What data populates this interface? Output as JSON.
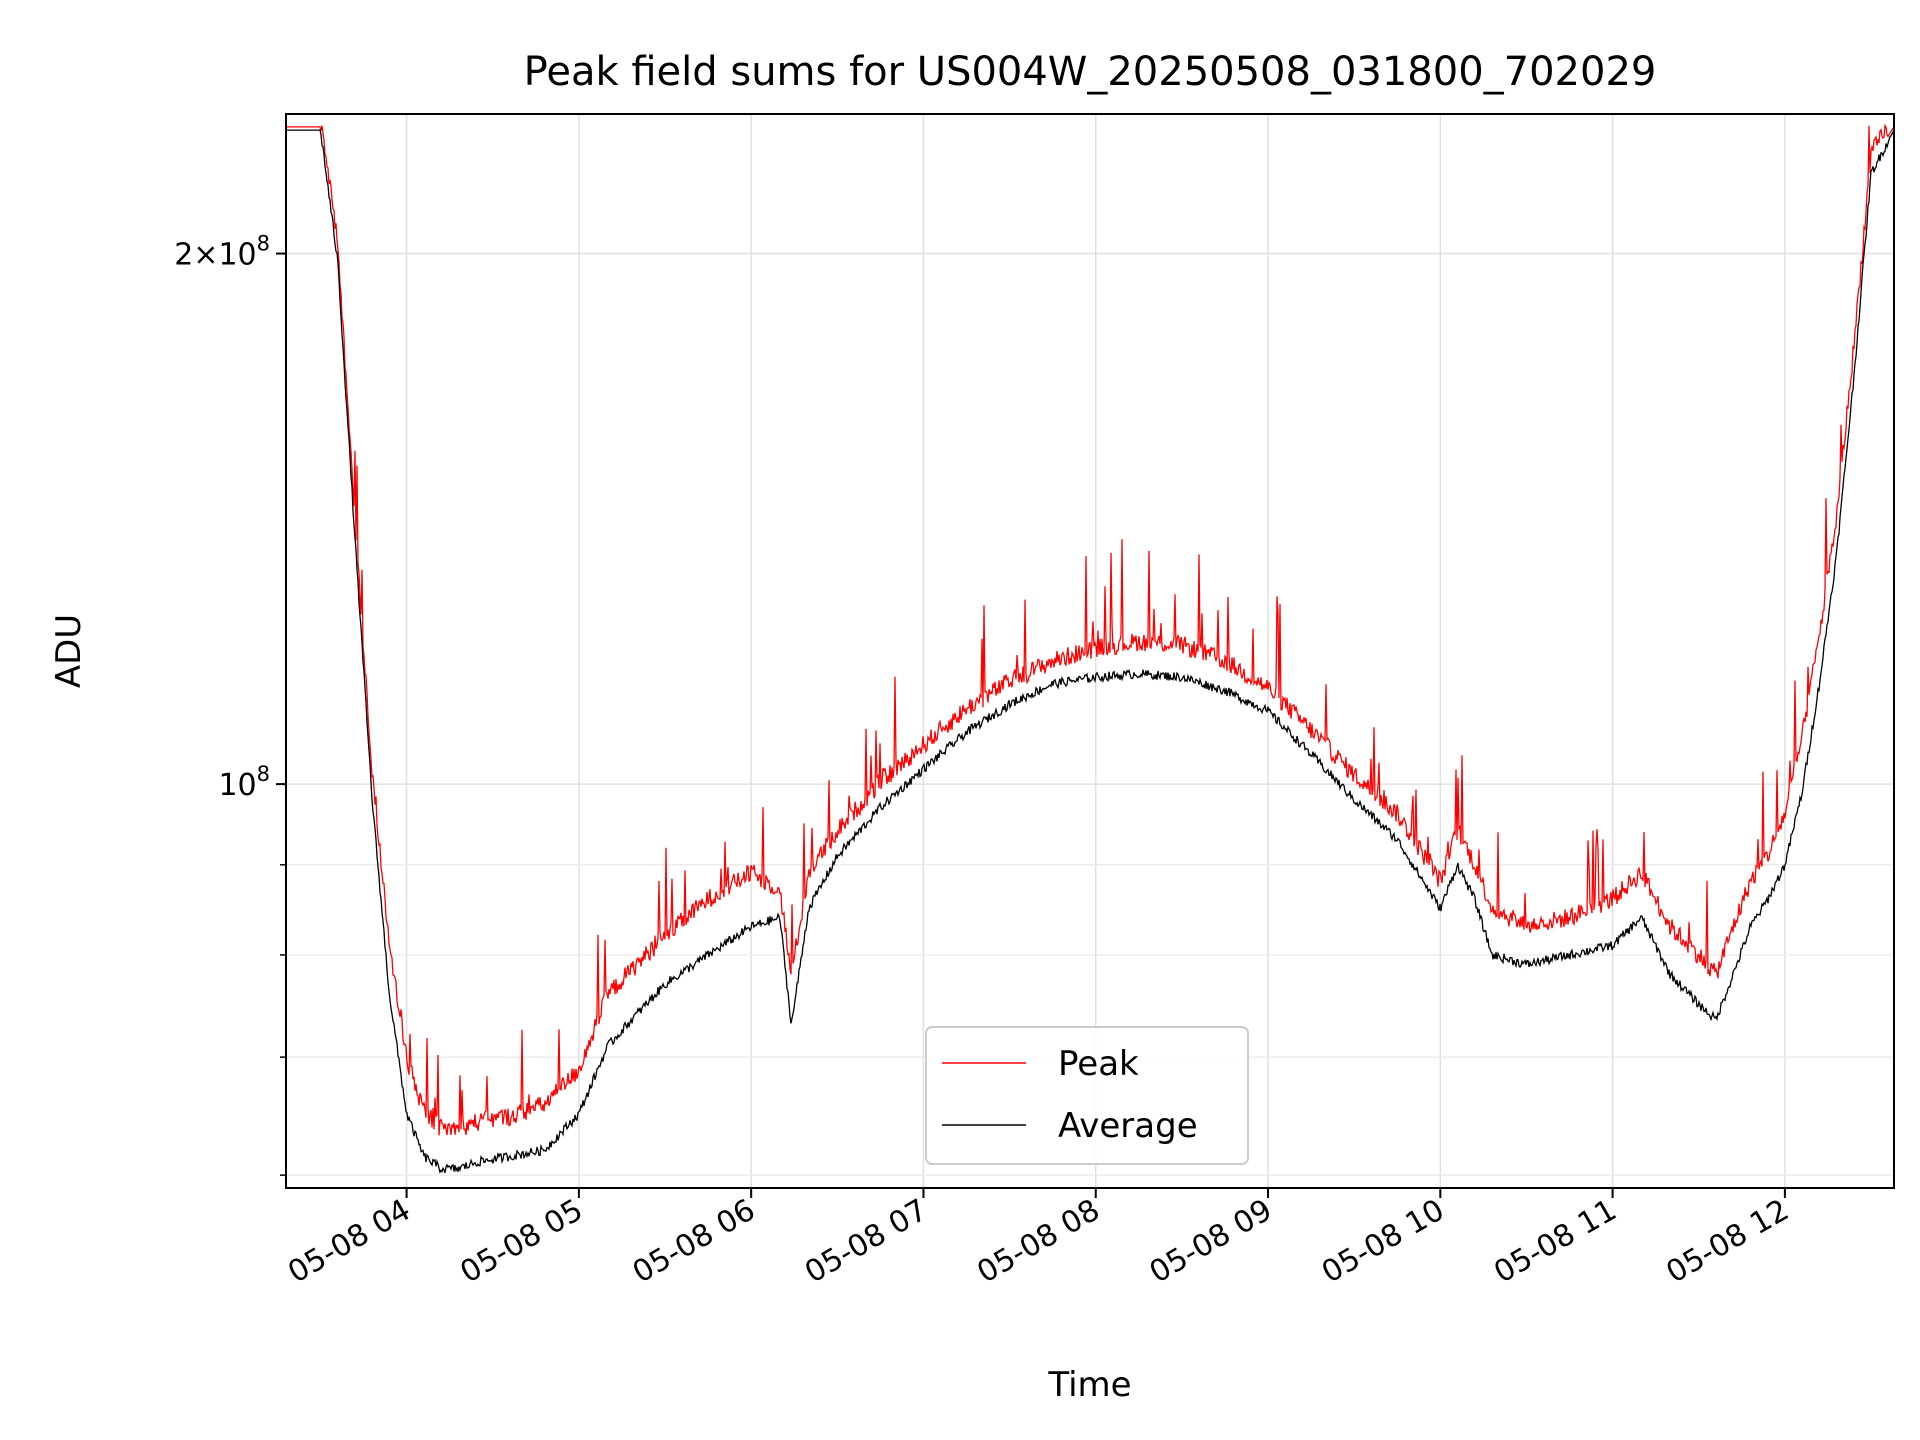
{
  "chart_data": {
    "type": "line",
    "title": "Peak field sums for US004W_20250508_031800_702029",
    "xlabel": "Time",
    "ylabel": "ADU",
    "x_ticks": [
      "05-08 04",
      "05-08 05",
      "05-08 06",
      "05-08 07",
      "05-08 08",
      "05-08 09",
      "05-08 10",
      "05-08 11",
      "05-08 12"
    ],
    "y_ticks": [
      {
        "value": 200000000,
        "label_main": "2×10",
        "label_exp": "8"
      },
      {
        "value": 100000000,
        "label_main": "10",
        "label_exp": "8"
      }
    ],
    "y_minor_ticks": [
      60000000,
      70000000,
      80000000,
      90000000
    ],
    "xlim": [
      "2025-05-08 03:18",
      "2025-05-08 12:38"
    ],
    "ylim": [
      59000000,
      240000000
    ],
    "yscale": "log",
    "grid": true,
    "legend_position": "lower center",
    "series": [
      {
        "name": "Peak",
        "color": "#ff0000",
        "x": [
          "03:18",
          "03:30",
          "03:36",
          "03:42",
          "03:48",
          "03:54",
          "04:00",
          "04:06",
          "04:12",
          "04:18",
          "04:24",
          "04:36",
          "04:48",
          "05:00",
          "05:10",
          "05:20",
          "05:30",
          "05:45",
          "06:00",
          "06:10",
          "06:14",
          "06:20",
          "06:30",
          "06:45",
          "07:00",
          "07:15",
          "07:30",
          "07:45",
          "08:00",
          "08:15",
          "08:30",
          "08:45",
          "09:00",
          "09:15",
          "09:30",
          "09:45",
          "10:00",
          "10:06",
          "10:12",
          "10:18",
          "10:30",
          "10:45",
          "11:00",
          "11:10",
          "11:20",
          "11:30",
          "11:36",
          "11:42",
          "11:48",
          "11:54",
          "12:00",
          "12:06",
          "12:12",
          "12:18",
          "12:24",
          "12:30",
          "12:38"
        ],
        "y": [
          236000000,
          236000000,
          200000000,
          140000000,
          100000000,
          80000000,
          69000000,
          64500000,
          63000000,
          63000000,
          63500000,
          64000000,
          65000000,
          68000000,
          75000000,
          78000000,
          81000000,
          85000000,
          88000000,
          86000000,
          77000000,
          88000000,
          93000000,
          99000000,
          104000000,
          109000000,
          113000000,
          116000000,
          118000000,
          119000000,
          118500000,
          116000000,
          112000000,
          106000000,
          100000000,
          95000000,
          87000000,
          93000000,
          89000000,
          84000000,
          82000000,
          83000000,
          85000000,
          88000000,
          82000000,
          79000000,
          77000000,
          82000000,
          87000000,
          90000000,
          95000000,
          105000000,
          120000000,
          140000000,
          175000000,
          225000000,
          236000000
        ]
      },
      {
        "name": "Average",
        "color": "#000000",
        "x": [
          "03:18",
          "03:30",
          "03:36",
          "03:42",
          "03:48",
          "03:54",
          "04:00",
          "04:06",
          "04:12",
          "04:18",
          "04:24",
          "04:36",
          "04:48",
          "05:00",
          "05:10",
          "05:20",
          "05:30",
          "05:45",
          "06:00",
          "06:10",
          "06:14",
          "06:20",
          "06:30",
          "06:45",
          "07:00",
          "07:15",
          "07:30",
          "07:45",
          "08:00",
          "08:15",
          "08:30",
          "08:45",
          "09:00",
          "09:15",
          "09:30",
          "09:45",
          "10:00",
          "10:06",
          "10:12",
          "10:18",
          "10:30",
          "10:45",
          "11:00",
          "11:10",
          "11:20",
          "11:30",
          "11:36",
          "11:42",
          "11:48",
          "11:54",
          "12:00",
          "12:06",
          "12:12",
          "12:18",
          "12:24",
          "12:30",
          "12:38"
        ],
        "y": [
          235000000,
          235000000,
          198000000,
          138000000,
          98000000,
          76000000,
          65000000,
          61500000,
          60500000,
          60500000,
          61000000,
          61500000,
          62000000,
          65000000,
          71000000,
          74000000,
          77000000,
          80000000,
          83000000,
          84000000,
          73000000,
          85000000,
          91000000,
          97000000,
          102000000,
          107000000,
          111000000,
          114000000,
          115000000,
          115500000,
          115000000,
          113000000,
          110000000,
          104000000,
          98000000,
          93000000,
          85000000,
          90000000,
          86000000,
          80000000,
          79000000,
          80000000,
          81000000,
          84000000,
          78000000,
          75000000,
          73500000,
          78000000,
          83000000,
          86000000,
          90000000,
          99000000,
          114000000,
          135000000,
          170000000,
          222000000,
          235000000
        ]
      }
    ]
  }
}
